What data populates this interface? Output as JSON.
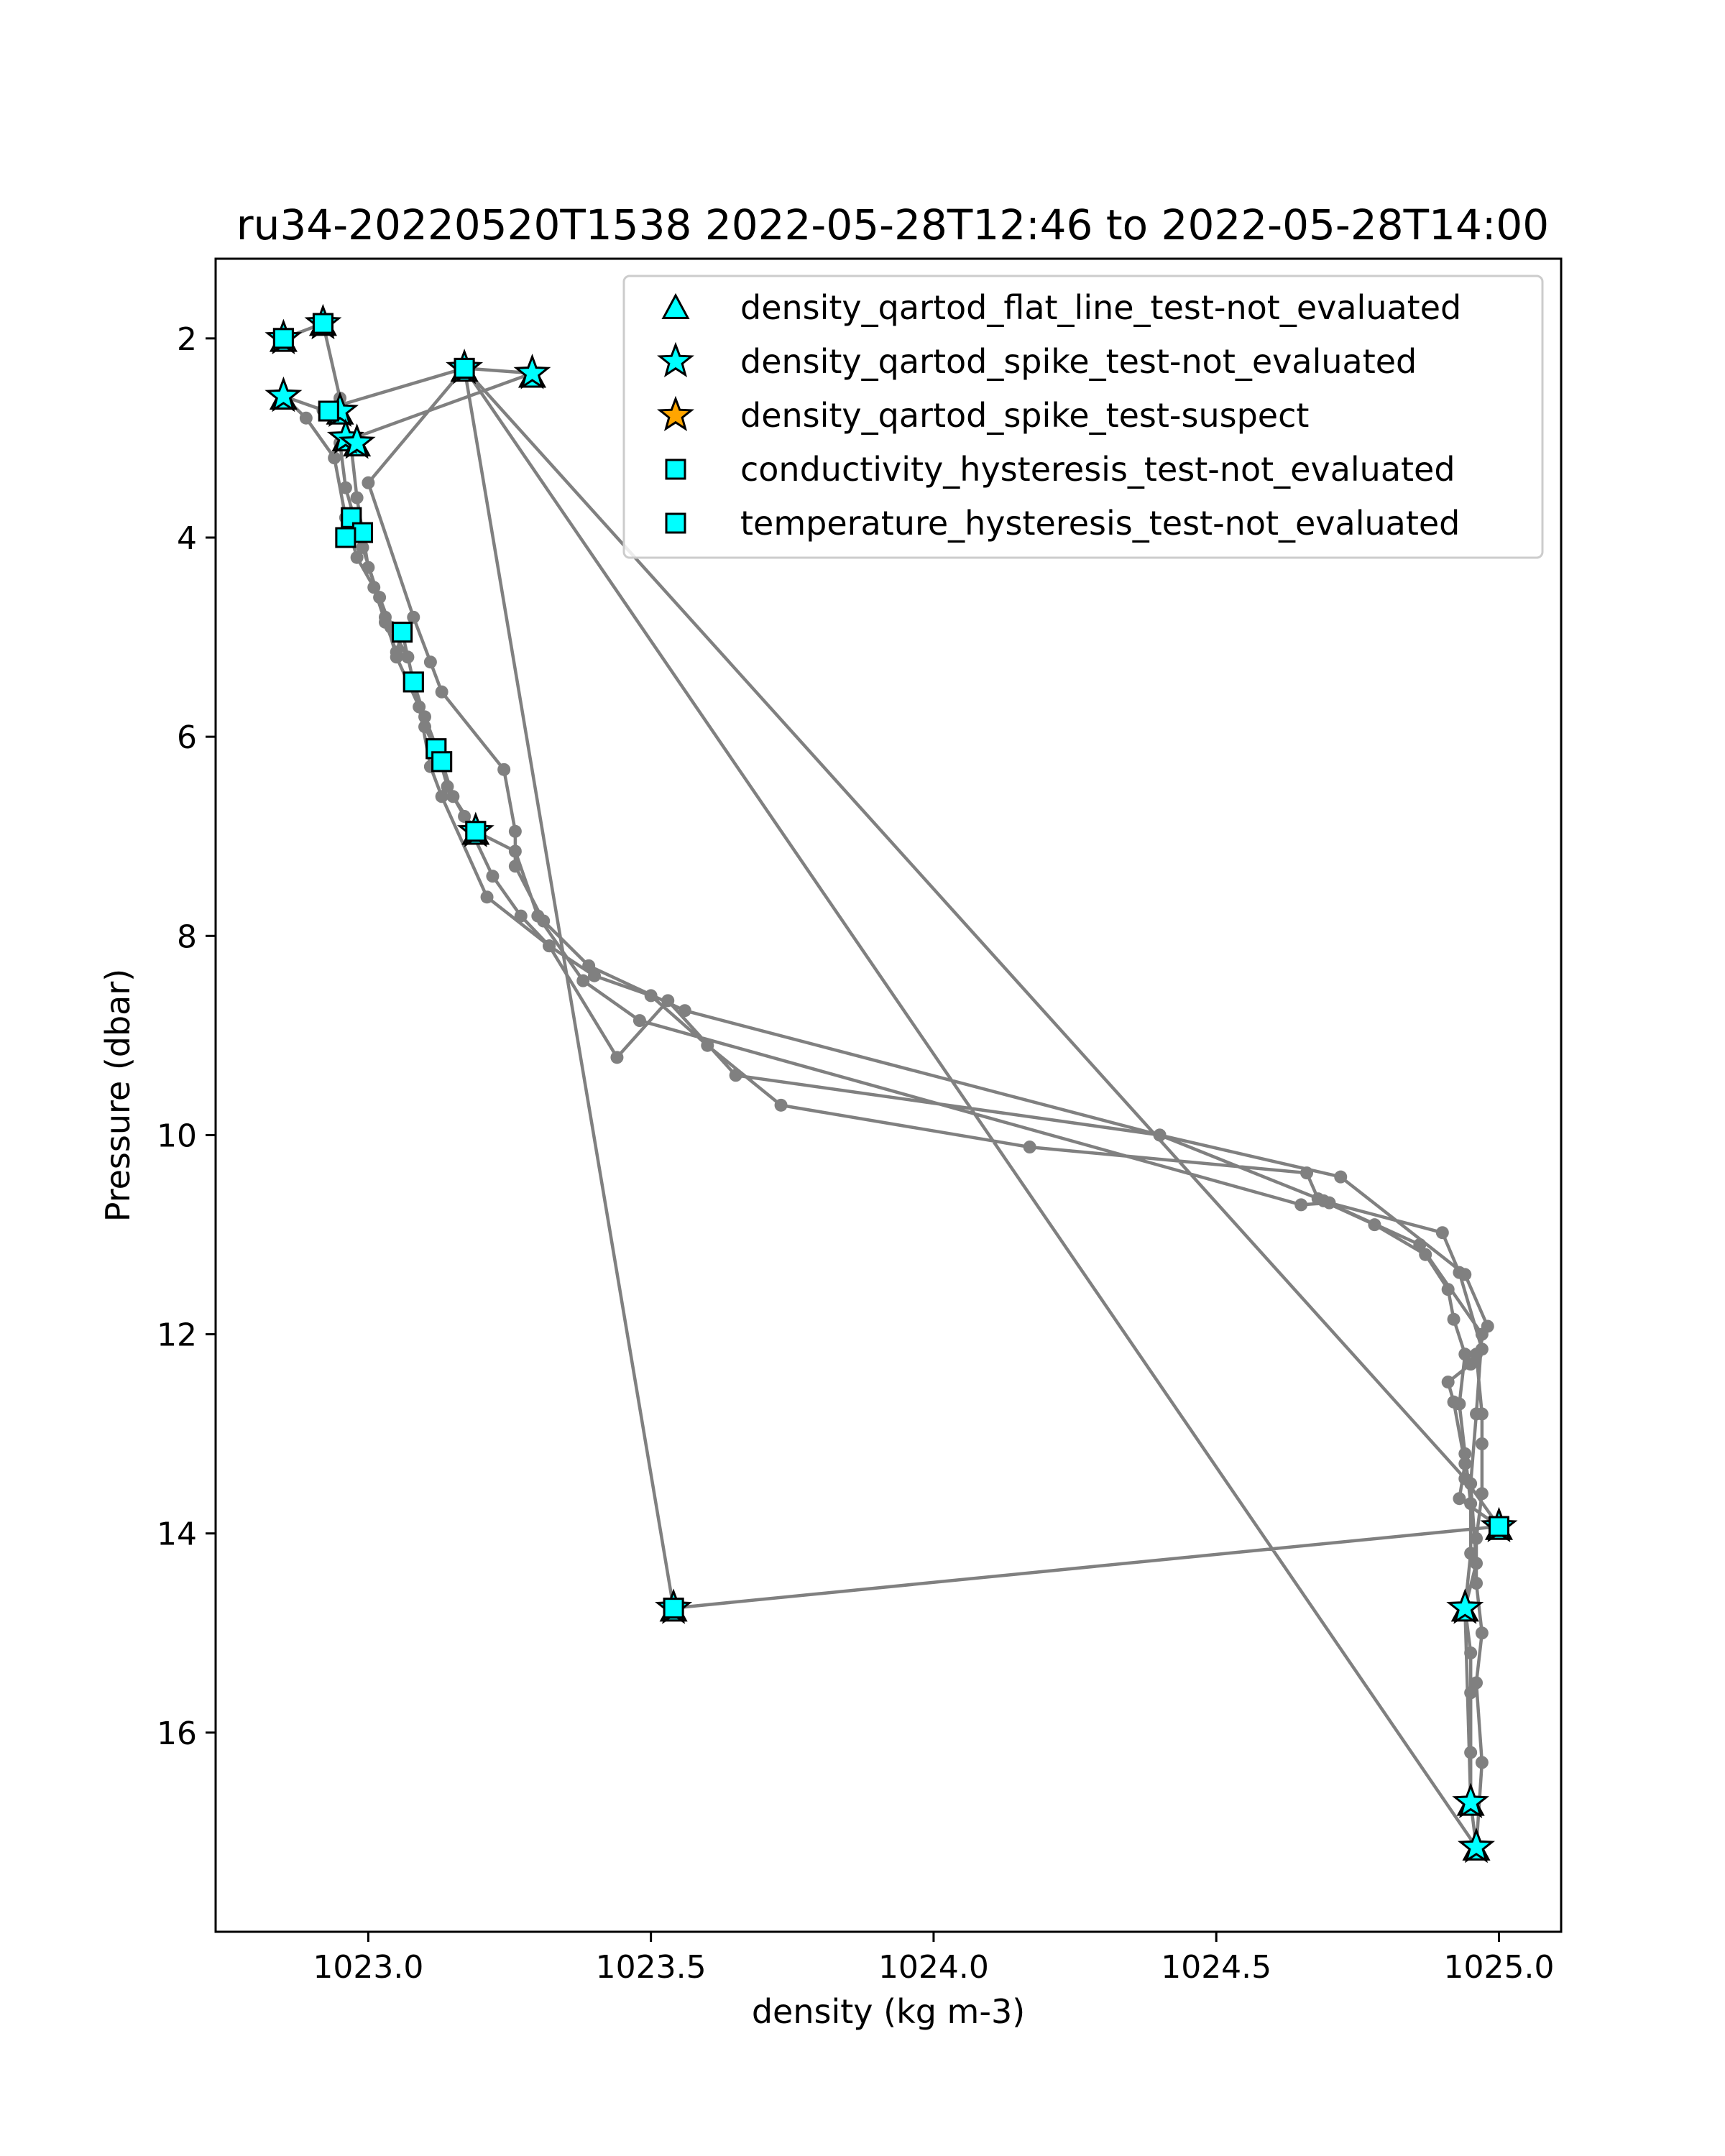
{
  "chart_data": {
    "type": "scatter",
    "title": "ru34-20220520T1538 2022-05-28T12:46 to 2022-05-28T14:00",
    "xlabel": "density (kg m-3)",
    "ylabel": "Pressure (dbar)",
    "xlim": [
      1022.73,
      1025.11
    ],
    "ylim": [
      18.0,
      1.2
    ],
    "y_inverted": true,
    "grid": false,
    "legend_position": "top-right",
    "x_ticks": [
      {
        "value": 1023.0,
        "label": "1023.0"
      },
      {
        "value": 1023.5,
        "label": "1023.5"
      },
      {
        "value": 1024.0,
        "label": "1024.0"
      },
      {
        "value": 1024.5,
        "label": "1024.5"
      },
      {
        "value": 1025.0,
        "label": "1025.0"
      }
    ],
    "y_ticks": [
      {
        "value": 2,
        "label": "2"
      },
      {
        "value": 4,
        "label": "4"
      },
      {
        "value": 6,
        "label": "6"
      },
      {
        "value": 8,
        "label": "8"
      },
      {
        "value": 10,
        "label": "10"
      },
      {
        "value": 12,
        "label": "12"
      },
      {
        "value": 14,
        "label": "14"
      },
      {
        "value": 16,
        "label": "16"
      }
    ],
    "profile": {
      "color": "#808080",
      "points": [
        [
          1022.85,
          2.0
        ],
        [
          1022.92,
          1.85
        ],
        [
          1022.95,
          2.6
        ],
        [
          1022.97,
          3.1
        ],
        [
          1022.98,
          3.6
        ],
        [
          1022.99,
          3.95
        ],
        [
          1023.0,
          4.3
        ],
        [
          1023.02,
          4.6
        ],
        [
          1023.04,
          4.9
        ],
        [
          1023.07,
          5.2
        ],
        [
          1023.08,
          5.45
        ],
        [
          1023.1,
          5.8
        ],
        [
          1023.12,
          6.1
        ],
        [
          1023.14,
          6.5
        ],
        [
          1023.17,
          6.8
        ],
        [
          1023.22,
          7.4
        ],
        [
          1023.27,
          7.8
        ],
        [
          1023.32,
          8.1
        ],
        [
          1023.4,
          8.4
        ],
        [
          1023.5,
          8.6
        ],
        [
          1023.6,
          9.1
        ],
        [
          1023.73,
          9.7
        ],
        [
          1024.17,
          10.12
        ],
        [
          1024.66,
          10.38
        ],
        [
          1024.68,
          10.64
        ],
        [
          1024.78,
          10.9
        ],
        [
          1024.87,
          11.2
        ],
        [
          1024.91,
          11.55
        ],
        [
          1024.92,
          11.85
        ],
        [
          1024.94,
          12.2
        ],
        [
          1024.93,
          12.7
        ],
        [
          1024.94,
          13.2
        ],
        [
          1024.95,
          13.7
        ],
        [
          1024.95,
          14.2
        ],
        [
          1024.94,
          14.75
        ],
        [
          1024.95,
          15.2
        ],
        [
          1024.95,
          15.6
        ],
        [
          1024.95,
          16.2
        ],
        [
          1024.95,
          16.7
        ],
        [
          1024.96,
          17.15
        ],
        [
          1024.97,
          16.3
        ],
        [
          1024.96,
          15.5
        ],
        [
          1024.97,
          15.0
        ],
        [
          1024.96,
          14.5
        ],
        [
          1024.96,
          14.05
        ],
        [
          1024.97,
          13.6
        ],
        [
          1024.97,
          13.1
        ],
        [
          1024.97,
          12.8
        ],
        [
          1024.96,
          12.2
        ],
        [
          1024.98,
          11.92
        ],
        [
          1024.94,
          11.4
        ],
        [
          1024.72,
          10.42
        ],
        [
          1024.4,
          10.0
        ],
        [
          1023.65,
          9.4
        ],
        [
          1023.53,
          8.65
        ],
        [
          1023.44,
          9.22
        ],
        [
          1023.32,
          8.1
        ],
        [
          1023.21,
          7.61
        ],
        [
          1023.13,
          6.6
        ],
        [
          1023.11,
          6.3
        ],
        [
          1023.09,
          5.7
        ],
        [
          1023.05,
          5.2
        ],
        [
          1023.03,
          4.8
        ],
        [
          1022.99,
          4.1
        ],
        [
          1022.96,
          3.5
        ],
        [
          1022.95,
          3.05
        ],
        [
          1023.29,
          2.35
        ],
        [
          1023.17,
          2.3
        ],
        [
          1022.92,
          2.72
        ],
        [
          1022.85,
          2.58
        ],
        [
          1022.89,
          2.8
        ],
        [
          1022.94,
          3.2
        ],
        [
          1022.96,
          3.8
        ],
        [
          1022.98,
          4.2
        ],
        [
          1023.01,
          4.5
        ],
        [
          1023.03,
          4.85
        ],
        [
          1023.05,
          5.15
        ],
        [
          1023.06,
          4.95
        ],
        [
          1023.08,
          5.45
        ],
        [
          1023.1,
          5.9
        ],
        [
          1023.13,
          6.25
        ],
        [
          1023.15,
          6.6
        ],
        [
          1023.19,
          6.95
        ],
        [
          1023.26,
          7.15
        ],
        [
          1023.3,
          7.8
        ],
        [
          1023.38,
          8.45
        ],
        [
          1023.48,
          8.85
        ],
        [
          1024.65,
          10.7
        ],
        [
          1024.7,
          10.68
        ],
        [
          1024.9,
          10.98
        ],
        [
          1024.93,
          11.38
        ],
        [
          1024.97,
          12.15
        ],
        [
          1024.95,
          12.3
        ],
        [
          1024.91,
          12.48
        ],
        [
          1024.92,
          12.68
        ],
        [
          1024.94,
          13.3
        ],
        [
          1024.93,
          13.65
        ],
        [
          1025.0,
          13.93
        ],
        [
          1023.54,
          14.75
        ],
        [
          1023.17,
          2.3
        ],
        [
          1023.0,
          3.45
        ],
        [
          1023.08,
          4.8
        ],
        [
          1023.11,
          5.25
        ],
        [
          1023.13,
          5.55
        ],
        [
          1023.24,
          6.33
        ],
        [
          1023.26,
          6.95
        ],
        [
          1023.26,
          7.3
        ],
        [
          1023.31,
          7.85
        ],
        [
          1023.39,
          8.3
        ],
        [
          1023.56,
          8.75
        ],
        [
          1024.4,
          10.0
        ],
        [
          1024.69,
          10.66
        ],
        [
          1024.86,
          11.1
        ],
        [
          1024.97,
          12.0
        ],
        [
          1024.96,
          12.8
        ],
        [
          1024.95,
          13.5
        ],
        [
          1024.96,
          14.3
        ],
        [
          1024.94,
          14.75
        ],
        [
          1024.95,
          16.7
        ],
        [
          1024.96,
          17.15
        ],
        [
          1023.17,
          2.3
        ],
        [
          1024.94,
          13.45
        ],
        [
          1025.0,
          13.93
        ]
      ]
    },
    "series": [
      {
        "name": "density_qartod_flat_line_test-not_evaluated",
        "marker": "triangle",
        "color": "#00ffff",
        "points": [
          [
            1022.85,
            2.02
          ],
          [
            1022.92,
            1.86
          ],
          [
            1023.17,
            2.32
          ],
          [
            1023.29,
            2.38
          ],
          [
            1022.85,
            2.6
          ],
          [
            1022.95,
            2.75
          ],
          [
            1022.96,
            3.02
          ],
          [
            1022.98,
            3.07
          ],
          [
            1023.19,
            6.97
          ],
          [
            1025.0,
            13.95
          ],
          [
            1023.54,
            14.77
          ],
          [
            1024.94,
            14.77
          ],
          [
            1024.95,
            16.72
          ],
          [
            1024.96,
            17.17
          ]
        ]
      },
      {
        "name": "density_qartod_spike_test-not_evaluated",
        "marker": "star",
        "color": "#00ffff",
        "points": [
          [
            1022.85,
            2.0
          ],
          [
            1022.92,
            1.85
          ],
          [
            1023.17,
            2.3
          ],
          [
            1023.29,
            2.35
          ],
          [
            1022.85,
            2.58
          ],
          [
            1022.95,
            2.73
          ],
          [
            1022.96,
            3.0
          ],
          [
            1022.98,
            3.05
          ],
          [
            1023.19,
            6.95
          ],
          [
            1025.0,
            13.93
          ],
          [
            1023.54,
            14.75
          ],
          [
            1024.94,
            14.75
          ],
          [
            1024.95,
            16.7
          ],
          [
            1024.96,
            17.15
          ]
        ]
      },
      {
        "name": "density_qartod_spike_test-suspect",
        "marker": "star",
        "color": "#ffa500",
        "points": []
      },
      {
        "name": "conductivity_hysteresis_test-not_evaluated",
        "marker": "square",
        "color": "#00ffff",
        "points": [
          [
            1022.85,
            2.0
          ],
          [
            1022.92,
            1.85
          ],
          [
            1023.17,
            2.3
          ],
          [
            1022.93,
            2.73
          ],
          [
            1022.97,
            3.8
          ],
          [
            1022.99,
            3.95
          ],
          [
            1022.96,
            4.0
          ],
          [
            1023.06,
            4.95
          ],
          [
            1023.08,
            5.45
          ],
          [
            1023.12,
            6.12
          ],
          [
            1023.13,
            6.25
          ],
          [
            1023.19,
            6.95
          ],
          [
            1025.0,
            13.93
          ],
          [
            1023.54,
            14.75
          ]
        ]
      },
      {
        "name": "temperature_hysteresis_test-not_evaluated",
        "marker": "square",
        "color": "#00ffff",
        "points": [
          [
            1022.85,
            2.0
          ],
          [
            1022.92,
            1.85
          ],
          [
            1023.17,
            2.3
          ],
          [
            1022.93,
            2.73
          ],
          [
            1022.97,
            3.8
          ],
          [
            1022.99,
            3.95
          ],
          [
            1022.96,
            4.0
          ],
          [
            1023.06,
            4.95
          ],
          [
            1023.08,
            5.45
          ],
          [
            1023.12,
            6.12
          ],
          [
            1023.13,
            6.25
          ],
          [
            1023.19,
            6.95
          ],
          [
            1025.0,
            13.93
          ],
          [
            1023.54,
            14.75
          ]
        ]
      }
    ]
  }
}
